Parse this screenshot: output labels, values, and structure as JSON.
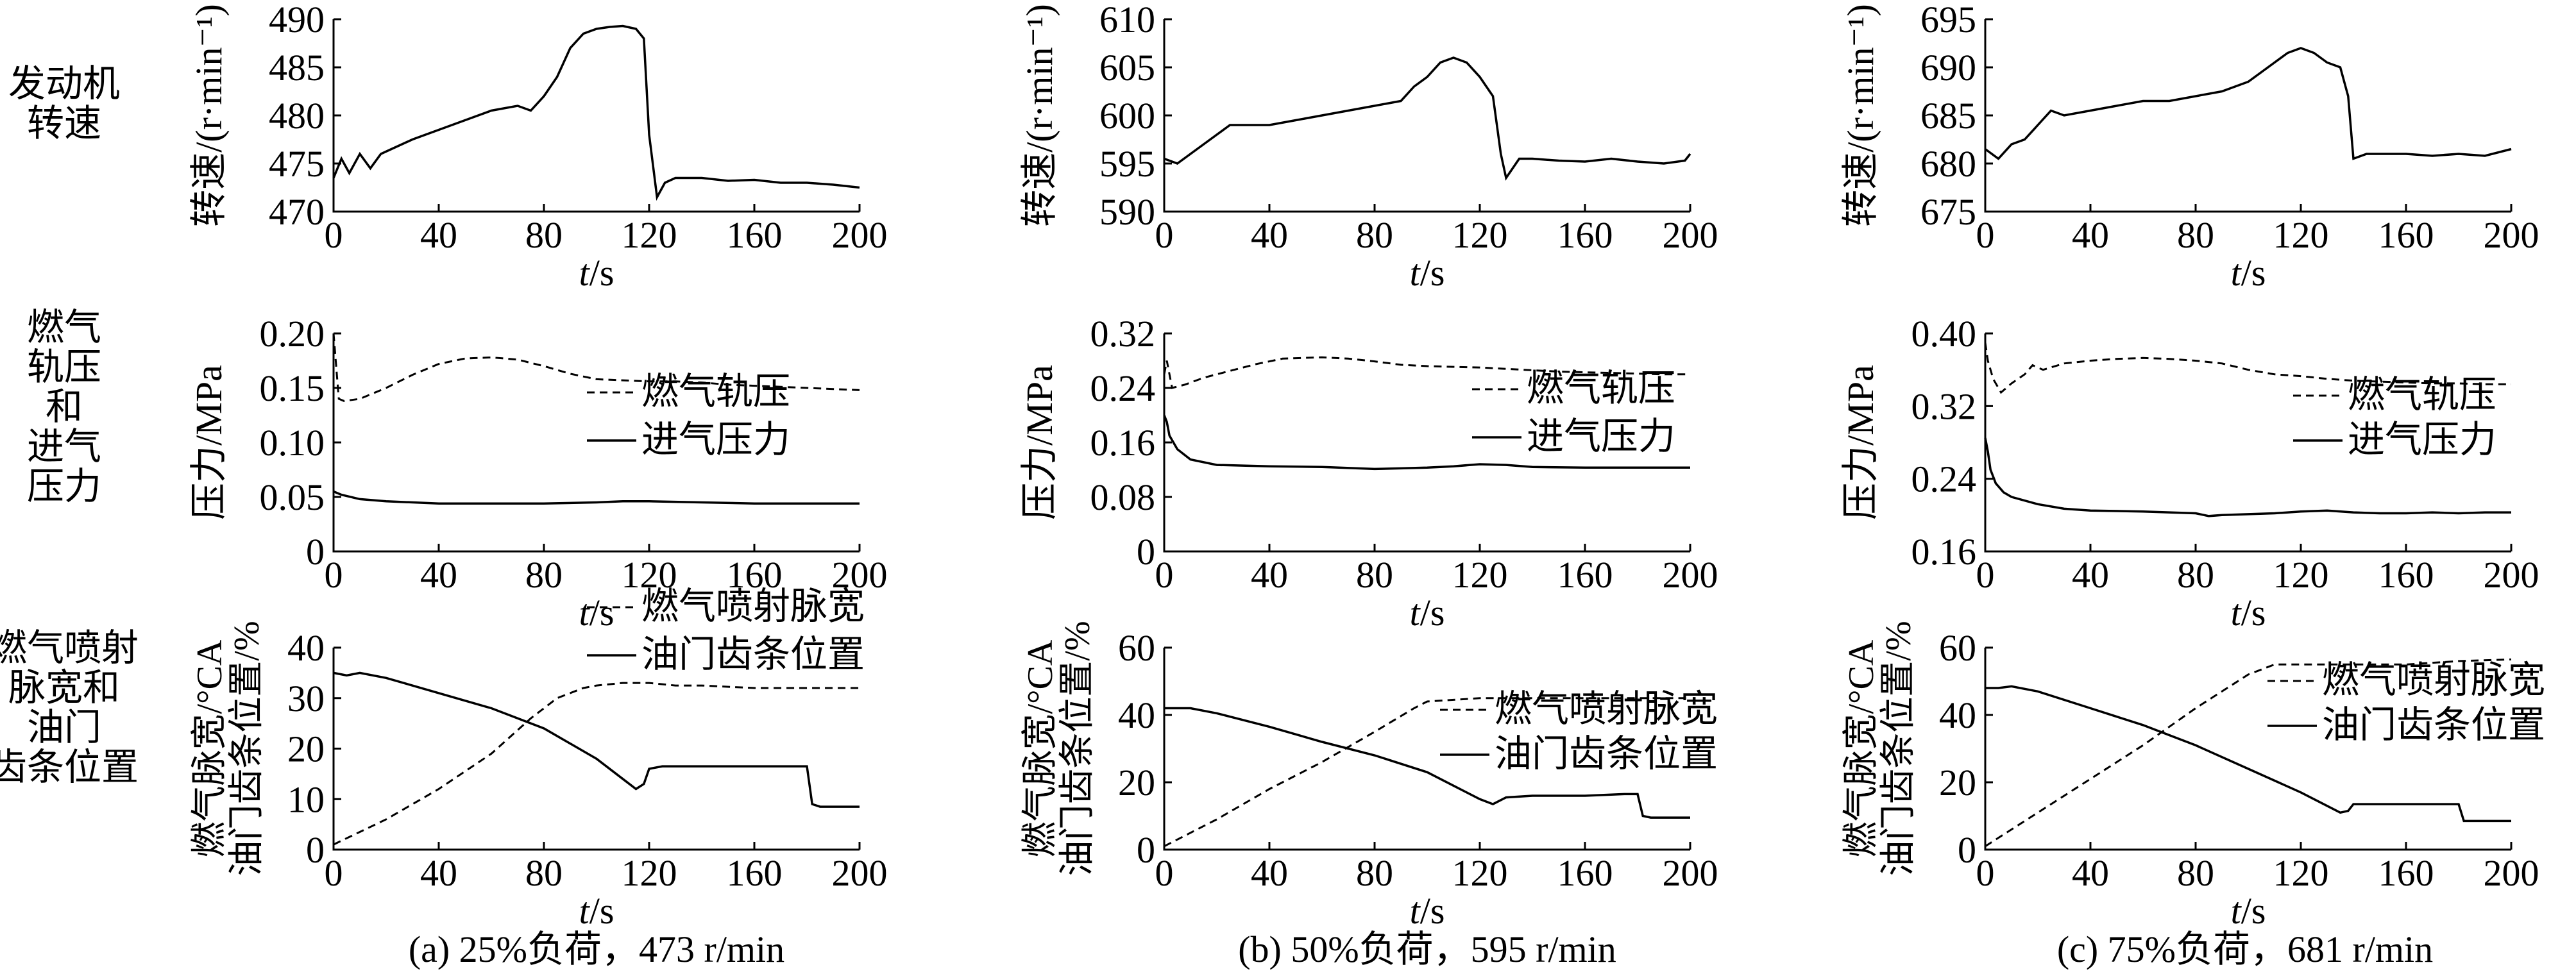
{
  "row_labels": [
    [
      "发动机",
      "转速"
    ],
    [
      "燃气",
      "轨压",
      "和",
      "进气",
      "压力"
    ],
    [
      "燃气喷射",
      "脉宽和",
      "油门",
      "齿条位置"
    ]
  ],
  "chart_data": [
    {
      "id": "a-speed",
      "type": "line",
      "column": 0,
      "row": 0,
      "ylabel": "转速/(r·min⁻¹)",
      "xlabel_italic": "t",
      "xlabel_unit": "/s",
      "xlim": [
        0,
        200
      ],
      "ylim": [
        470,
        490
      ],
      "xticks": [
        0,
        40,
        80,
        120,
        160,
        200
      ],
      "yticks": [
        470,
        475,
        480,
        485,
        490
      ],
      "legend": [],
      "series": [
        {
          "style": "solid",
          "x": [
            0,
            3,
            6,
            10,
            14,
            18,
            22,
            30,
            40,
            50,
            60,
            70,
            75,
            80,
            85,
            90,
            95,
            100,
            105,
            110,
            115,
            118,
            120,
            123,
            126,
            130,
            140,
            150,
            160,
            170,
            180,
            190,
            200
          ],
          "y": [
            473.5,
            475.5,
            474,
            476,
            474.5,
            476,
            476.5,
            477.5,
            478.5,
            479.5,
            480.5,
            481,
            480.5,
            482,
            484,
            487,
            488.5,
            489,
            489.2,
            489.3,
            489,
            488,
            478,
            471.5,
            473,
            473.5,
            473.5,
            473.2,
            473.3,
            473,
            473,
            472.8,
            472.5
          ]
        }
      ]
    },
    {
      "id": "b-speed",
      "type": "line",
      "column": 1,
      "row": 0,
      "ylabel": "转速/(r·min⁻¹)",
      "xlabel_italic": "t",
      "xlabel_unit": "/s",
      "xlim": [
        0,
        200
      ],
      "ylim": [
        590,
        610
      ],
      "xticks": [
        0,
        40,
        80,
        120,
        160,
        200
      ],
      "yticks": [
        590,
        595,
        600,
        605,
        610
      ],
      "legend": [],
      "series": [
        {
          "style": "solid",
          "x": [
            0,
            5,
            10,
            15,
            20,
            25,
            30,
            40,
            50,
            60,
            70,
            80,
            90,
            95,
            100,
            105,
            110,
            115,
            120,
            125,
            128,
            130,
            135,
            140,
            150,
            160,
            170,
            180,
            190,
            198,
            200
          ],
          "y": [
            595.5,
            595,
            596,
            597,
            598,
            599,
            599,
            599,
            599.5,
            600,
            600.5,
            601,
            601.5,
            603,
            604,
            605.5,
            606,
            605.5,
            604,
            602,
            596,
            593.5,
            595.5,
            595.5,
            595.3,
            595.2,
            595.5,
            595.2,
            595,
            595.3,
            596
          ]
        }
      ]
    },
    {
      "id": "c-speed",
      "type": "line",
      "column": 2,
      "row": 0,
      "ylabel": "转速/(r·min⁻¹)",
      "xlabel_italic": "t",
      "xlabel_unit": "/s",
      "xlim": [
        0,
        200
      ],
      "ylim": [
        675,
        695
      ],
      "xticks": [
        0,
        40,
        80,
        120,
        160,
        200
      ],
      "yticks": [
        675,
        680,
        685,
        690,
        695
      ],
      "legend": [],
      "series": [
        {
          "style": "solid",
          "x": [
            0,
            5,
            10,
            15,
            20,
            25,
            30,
            40,
            50,
            60,
            70,
            80,
            90,
            100,
            110,
            115,
            120,
            125,
            130,
            135,
            138,
            140,
            145,
            150,
            160,
            170,
            180,
            190,
            200
          ],
          "y": [
            681.5,
            680.5,
            682,
            682.5,
            684,
            685.5,
            685,
            685.5,
            686,
            686.5,
            686.5,
            687,
            687.5,
            688.5,
            690.5,
            691.5,
            692,
            691.5,
            690.5,
            690,
            687,
            680.5,
            681,
            681,
            681,
            680.8,
            681,
            680.8,
            681.5
          ]
        }
      ]
    },
    {
      "id": "a-pressure",
      "type": "line",
      "column": 0,
      "row": 1,
      "ylabel": "压力/MPa",
      "xlabel_italic": "t",
      "xlabel_unit": "/s",
      "xlim": [
        0,
        200
      ],
      "ylim": [
        0,
        0.2
      ],
      "xticks": [
        0,
        40,
        80,
        120,
        160,
        200
      ],
      "yticks": [
        "0",
        "0.05",
        "0.10",
        "0.15",
        "0.20"
      ],
      "legend": [
        "燃气轨压",
        "进气压力"
      ],
      "series": [
        {
          "name": "燃气轨压",
          "style": "dashed",
          "x": [
            0,
            2,
            4,
            10,
            20,
            30,
            40,
            50,
            60,
            70,
            80,
            90,
            100,
            110,
            120,
            130,
            140,
            150,
            160,
            170,
            180,
            190,
            200
          ],
          "y": [
            0.2,
            0.14,
            0.138,
            0.14,
            0.15,
            0.162,
            0.172,
            0.177,
            0.178,
            0.176,
            0.17,
            0.163,
            0.158,
            0.157,
            0.156,
            0.156,
            0.155,
            0.153,
            0.152,
            0.151,
            0.15,
            0.149,
            0.148
          ]
        },
        {
          "name": "进气压力",
          "style": "solid",
          "x": [
            0,
            3,
            10,
            20,
            40,
            60,
            80,
            100,
            110,
            120,
            140,
            160,
            180,
            200
          ],
          "y": [
            0.055,
            0.052,
            0.048,
            0.046,
            0.044,
            0.044,
            0.044,
            0.045,
            0.046,
            0.046,
            0.045,
            0.044,
            0.044,
            0.044
          ]
        }
      ]
    },
    {
      "id": "b-pressure",
      "type": "line",
      "column": 1,
      "row": 1,
      "ylabel": "压力/MPa",
      "xlabel_italic": "t",
      "xlabel_unit": "/s",
      "xlim": [
        0,
        200
      ],
      "ylim": [
        0,
        0.32
      ],
      "xticks": [
        0,
        40,
        80,
        120,
        160,
        200
      ],
      "yticks": [
        "0",
        "0.08",
        "0.16",
        "0.24",
        "0.32"
      ],
      "legend": [
        "燃气轨压",
        "进气压力"
      ],
      "series": [
        {
          "name": "燃气轨压",
          "style": "dashed",
          "x": [
            0,
            1,
            3,
            8,
            15,
            25,
            35,
            45,
            60,
            70,
            80,
            90,
            100,
            110,
            120,
            130,
            140,
            150,
            160,
            170,
            180,
            190,
            200
          ],
          "y": [
            0.26,
            0.28,
            0.24,
            0.245,
            0.255,
            0.265,
            0.275,
            0.283,
            0.285,
            0.283,
            0.279,
            0.274,
            0.272,
            0.271,
            0.27,
            0.268,
            0.266,
            0.264,
            0.263,
            0.262,
            0.261,
            0.26,
            0.26
          ]
        },
        {
          "name": "进气压力",
          "style": "solid",
          "x": [
            0,
            1,
            2,
            5,
            10,
            20,
            40,
            60,
            80,
            90,
            100,
            110,
            120,
            130,
            140,
            160,
            180,
            200
          ],
          "y": [
            0.2,
            0.19,
            0.17,
            0.15,
            0.135,
            0.127,
            0.125,
            0.124,
            0.121,
            0.122,
            0.123,
            0.125,
            0.128,
            0.127,
            0.124,
            0.123,
            0.123,
            0.123
          ]
        }
      ]
    },
    {
      "id": "c-pressure",
      "type": "line",
      "column": 2,
      "row": 1,
      "ylabel": "压力/MPa",
      "xlabel_italic": "t",
      "xlabel_unit": "/s",
      "xlim": [
        0,
        200
      ],
      "ylim": [
        0.16,
        0.4
      ],
      "xticks": [
        0,
        40,
        80,
        120,
        160,
        200
      ],
      "yticks": [
        "0.16",
        "0.24",
        "0.32",
        "0.40"
      ],
      "legend": [
        "燃气轨压",
        "进气压力"
      ],
      "series": [
        {
          "name": "燃气轨压",
          "style": "dashed",
          "x": [
            0,
            1,
            3,
            6,
            10,
            15,
            18,
            22,
            30,
            40,
            50,
            60,
            70,
            80,
            90,
            100,
            110,
            120,
            130,
            140,
            150,
            160,
            170,
            180,
            190,
            200
          ],
          "y": [
            0.39,
            0.37,
            0.35,
            0.335,
            0.345,
            0.355,
            0.365,
            0.36,
            0.367,
            0.37,
            0.372,
            0.373,
            0.372,
            0.37,
            0.367,
            0.36,
            0.355,
            0.353,
            0.35,
            0.348,
            0.347,
            0.346,
            0.345,
            0.345,
            0.344,
            0.344
          ]
        },
        {
          "name": "进气压力",
          "style": "solid",
          "x": [
            0,
            1,
            2,
            4,
            7,
            10,
            20,
            30,
            40,
            60,
            80,
            85,
            90,
            100,
            110,
            120,
            130,
            140,
            150,
            160,
            170,
            180,
            190,
            200
          ],
          "y": [
            0.285,
            0.27,
            0.25,
            0.235,
            0.225,
            0.22,
            0.212,
            0.207,
            0.205,
            0.204,
            0.202,
            0.199,
            0.2,
            0.201,
            0.202,
            0.204,
            0.205,
            0.203,
            0.202,
            0.202,
            0.203,
            0.202,
            0.203,
            0.203
          ]
        }
      ]
    },
    {
      "id": "a-injection",
      "type": "line",
      "column": 0,
      "row": 2,
      "ylabel_lines": [
        "燃气脉宽/°CA",
        "油门齿条位置/%"
      ],
      "xlabel_italic": "t",
      "xlabel_unit": "/s",
      "xlim": [
        0,
        200
      ],
      "ylim": [
        0,
        40
      ],
      "xticks": [
        0,
        40,
        80,
        120,
        160,
        200
      ],
      "yticks": [
        10,
        20,
        30,
        40
      ],
      "y_zero_shared": true,
      "legend": [
        "燃气喷射脉宽",
        "油门齿条位置"
      ],
      "series": [
        {
          "name": "燃气喷射脉宽",
          "style": "dashed",
          "x": [
            0,
            20,
            40,
            60,
            75,
            85,
            95,
            100,
            110,
            120,
            130,
            140,
            160,
            180,
            200
          ],
          "y": [
            1,
            6,
            12,
            19,
            26,
            30,
            32,
            32.5,
            33,
            33,
            32.5,
            32.5,
            32,
            32,
            32
          ]
        },
        {
          "name": "油门齿条位置",
          "style": "solid",
          "x": [
            0,
            5,
            10,
            20,
            40,
            60,
            80,
            100,
            110,
            115,
            118,
            120,
            125,
            130,
            140,
            160,
            175,
            180,
            182,
            185,
            190,
            200
          ],
          "y": [
            35,
            34.5,
            35,
            34,
            31,
            28,
            24,
            18,
            14,
            12,
            13,
            16,
            16.5,
            16.5,
            16.5,
            16.5,
            16.5,
            16.5,
            9,
            8.5,
            8.5,
            8.5
          ]
        }
      ]
    },
    {
      "id": "b-injection",
      "type": "line",
      "column": 1,
      "row": 2,
      "ylabel_lines": [
        "燃气脉宽/°CA",
        "油门齿条位置/%"
      ],
      "xlabel_italic": "t",
      "xlabel_unit": "/s",
      "xlim": [
        0,
        200
      ],
      "ylim": [
        0,
        60
      ],
      "xticks": [
        0,
        40,
        80,
        120,
        160,
        200
      ],
      "yticks": [
        20,
        40,
        60
      ],
      "y_zero_shared": true,
      "legend": [
        "燃气喷射脉宽",
        "油门齿条位置"
      ],
      "series": [
        {
          "name": "燃气喷射脉宽",
          "style": "dashed",
          "x": [
            0,
            20,
            40,
            60,
            80,
            95,
            100,
            110,
            120,
            140,
            160,
            180,
            200
          ],
          "y": [
            1,
            9,
            18,
            26,
            35,
            42,
            44,
            44.5,
            45,
            45,
            45,
            45,
            45
          ]
        },
        {
          "name": "油门齿条位置",
          "style": "solid",
          "x": [
            0,
            5,
            10,
            20,
            40,
            60,
            80,
            100,
            110,
            120,
            125,
            130,
            140,
            160,
            175,
            180,
            182,
            185,
            190,
            200
          ],
          "y": [
            42,
            42,
            42,
            40.5,
            36.5,
            32,
            28,
            23,
            19,
            15,
            13.5,
            15.5,
            16,
            16,
            16.5,
            16.5,
            10,
            9.5,
            9.5,
            9.5
          ]
        }
      ]
    },
    {
      "id": "c-injection",
      "type": "line",
      "column": 2,
      "row": 2,
      "ylabel_lines": [
        "燃气脉宽/°CA",
        "油门齿条位置/%"
      ],
      "xlabel_italic": "t",
      "xlabel_unit": "/s",
      "xlim": [
        0,
        200
      ],
      "ylim": [
        0,
        60
      ],
      "xticks": [
        0,
        40,
        80,
        120,
        160,
        200
      ],
      "yticks": [
        20,
        40,
        60
      ],
      "y_zero_shared": true,
      "legend": [
        "燃气喷射脉宽",
        "油门齿条位置"
      ],
      "series": [
        {
          "name": "燃气喷射脉宽",
          "style": "dashed",
          "x": [
            0,
            20,
            40,
            60,
            80,
            100,
            110,
            120,
            140,
            160,
            180,
            200
          ],
          "y": [
            1,
            11,
            21,
            31,
            42,
            52,
            55,
            55,
            55,
            55,
            56,
            56.5
          ]
        },
        {
          "name": "油门齿条位置",
          "style": "solid",
          "x": [
            0,
            5,
            10,
            20,
            40,
            60,
            80,
            100,
            120,
            130,
            135,
            138,
            140,
            160,
            175,
            180,
            182,
            185,
            190,
            200
          ],
          "y": [
            48,
            48,
            48.5,
            47,
            42,
            37,
            31,
            24,
            17,
            13,
            11,
            11.5,
            13.5,
            13.5,
            13.5,
            13.5,
            8.5,
            8.5,
            8.5,
            8.5
          ]
        }
      ]
    }
  ],
  "captions": [
    "(a) 25%负荷，473 r/min",
    "(b) 50%负荷，595 r/min",
    "(c) 75%负荷，681 r/min"
  ]
}
